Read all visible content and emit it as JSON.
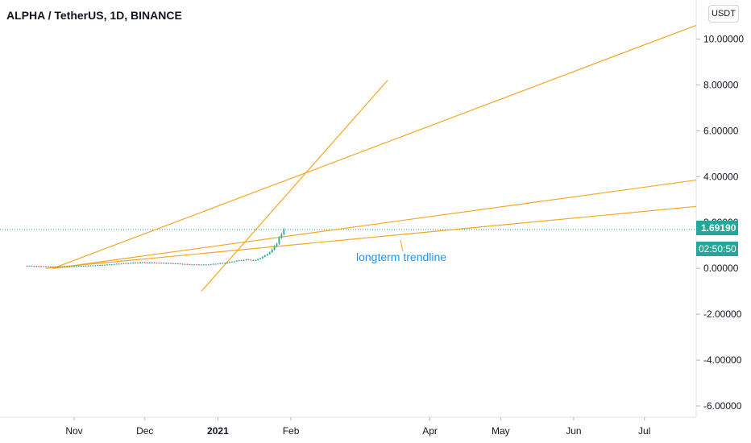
{
  "header": {
    "title": "ALPHA / TetherUS, 1D, BINANCE",
    "currency": "USDT"
  },
  "colors": {
    "trendline": "#f5a623",
    "price": "#26a69a",
    "axis_text": "#131722",
    "annotation": "#2196f3"
  },
  "price_label": {
    "value": "1.69190",
    "countdown": "02:50:50"
  },
  "annotation": {
    "text": "longterm trendline"
  },
  "chart_data": {
    "type": "candlestick",
    "title": "ALPHA / TetherUS, 1D, BINANCE",
    "xlabel": "",
    "ylabel": "",
    "xlim": [
      "2020-10-06",
      "2021-07-23"
    ],
    "ylim": [
      -6.0,
      11.0
    ],
    "y_ticks": [
      "10.00000",
      "8.00000",
      "6.00000",
      "4.00000",
      "2.00000",
      "0.00000",
      "-2.00000",
      "-4.00000",
      "-6.00000"
    ],
    "x_ticks": [
      {
        "date": "2020-11-01",
        "label": "Nov",
        "bold": false
      },
      {
        "date": "2020-12-01",
        "label": "Dec",
        "bold": false
      },
      {
        "date": "2021-01-01",
        "label": "2021",
        "bold": true
      },
      {
        "date": "2021-02-01",
        "label": "Feb",
        "bold": false
      },
      {
        "date": "2021-04-01",
        "label": "Apr",
        "bold": false
      },
      {
        "date": "2021-05-01",
        "label": "May",
        "bold": false
      },
      {
        "date": "2021-06-01",
        "label": "Jun",
        "bold": false
      },
      {
        "date": "2021-07-01",
        "label": "Jul",
        "bold": false
      }
    ],
    "last_price": 1.6919,
    "grid": false,
    "series": [
      {
        "type": "price",
        "points": [
          {
            "date": "2020-10-11",
            "close": 0.11
          },
          {
            "date": "2020-10-18",
            "close": 0.09
          },
          {
            "date": "2020-10-25",
            "close": 0.07
          },
          {
            "date": "2020-11-01",
            "close": 0.09
          },
          {
            "date": "2020-11-08",
            "close": 0.12
          },
          {
            "date": "2020-11-15",
            "close": 0.16
          },
          {
            "date": "2020-11-22",
            "close": 0.22
          },
          {
            "date": "2020-11-29",
            "close": 0.26
          },
          {
            "date": "2020-12-06",
            "close": 0.24
          },
          {
            "date": "2020-12-13",
            "close": 0.22
          },
          {
            "date": "2020-12-20",
            "close": 0.17
          },
          {
            "date": "2020-12-27",
            "close": 0.16
          },
          {
            "date": "2021-01-01",
            "close": 0.21
          },
          {
            "date": "2021-01-05",
            "close": 0.25
          },
          {
            "date": "2021-01-09",
            "close": 0.33
          },
          {
            "date": "2021-01-13",
            "close": 0.38
          },
          {
            "date": "2021-01-17",
            "close": 0.35
          },
          {
            "date": "2021-01-21",
            "close": 0.55
          },
          {
            "date": "2021-01-24",
            "close": 0.8
          },
          {
            "date": "2021-01-26",
            "close": 1.1
          },
          {
            "date": "2021-01-27",
            "close": 1.35
          },
          {
            "date": "2021-01-28",
            "close": 1.45
          },
          {
            "date": "2021-01-29",
            "close": 1.69
          }
        ]
      }
    ],
    "trendlines": [
      {
        "from": {
          "date": "2020-10-23",
          "value": 0.0
        },
        "to": {
          "date": "2021-07-23",
          "value": 10.6
        }
      },
      {
        "from": {
          "date": "2020-10-23",
          "value": 0.0
        },
        "to": {
          "date": "2021-07-23",
          "value": 3.85
        }
      },
      {
        "from": {
          "date": "2020-10-20",
          "value": 0.0
        },
        "to": {
          "date": "2021-07-23",
          "value": 2.7
        }
      },
      {
        "from": {
          "date": "2020-12-25",
          "value": -1.0
        },
        "to": {
          "date": "2021-03-14",
          "value": 8.2
        }
      }
    ]
  }
}
